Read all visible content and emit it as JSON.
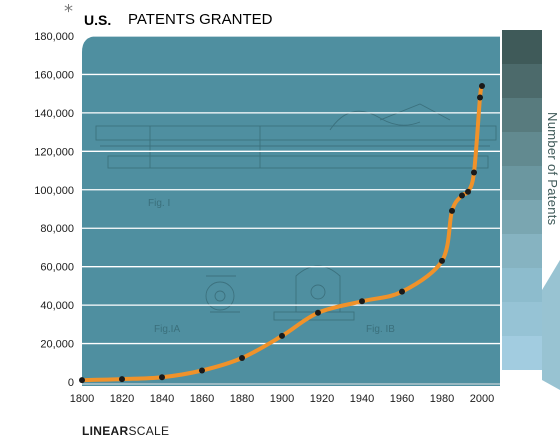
{
  "header": {
    "asterisk": "*",
    "title_bold": "U.S.",
    "title_rest": "PATENTS GRANTED"
  },
  "footer": {
    "scale_bold": "LINEAR",
    "scale_rest": "SCALE"
  },
  "legend": {
    "label": "Number of Patents",
    "swatches": [
      "#3f5a59",
      "#4c6a6b",
      "#587b7e",
      "#628a90",
      "#6b97a0",
      "#7aa6b1",
      "#86b3c1",
      "#8dbccd",
      "#96c3d5",
      "#a2cce0"
    ]
  },
  "colors": {
    "panel": "#4f8fa0",
    "curve": "#f0922a",
    "gridline": "#ffffff",
    "point": "#1a1a1a"
  },
  "chart_data": {
    "type": "line",
    "title": "U.S. PATENTS GRANTED",
    "xlabel": "",
    "ylabel": "Number of Patents",
    "xlim": [
      1800,
      2000
    ],
    "ylim": [
      0,
      180000
    ],
    "x_ticks": [
      "1800",
      "1820",
      "1840",
      "1860",
      "1880",
      "1900",
      "1920",
      "1940",
      "1960",
      "1980",
      "2000"
    ],
    "y_ticks": [
      "0",
      "20,000",
      "40,000",
      "60,000",
      "80,000",
      "100,000",
      "120,000",
      "140,000",
      "160,000",
      "180,000"
    ],
    "x_tick_values": [
      1800,
      1820,
      1840,
      1860,
      1880,
      1900,
      1920,
      1940,
      1960,
      1980,
      2000
    ],
    "y_tick_values": [
      0,
      20000,
      40000,
      60000,
      80000,
      100000,
      120000,
      140000,
      160000,
      180000
    ],
    "grid": true,
    "series": [
      {
        "x": [
          1800,
          1820,
          1840,
          1860,
          1880,
          1900,
          1918,
          1940,
          1960,
          1980,
          1985,
          1990,
          1993,
          1996,
          1999,
          2000
        ],
        "y": [
          1000,
          1500,
          2500,
          6000,
          12500,
          24000,
          36000,
          42000,
          47000,
          63000,
          89000,
          97000,
          99000,
          109000,
          148000,
          154000
        ]
      }
    ],
    "legend_position": "right"
  }
}
